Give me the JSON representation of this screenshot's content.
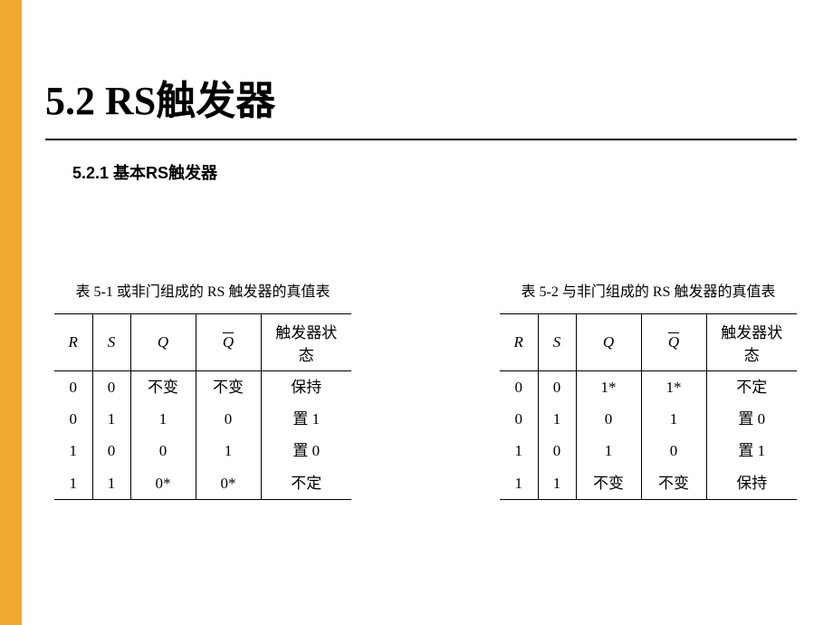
{
  "sidebar_color": "#f0a830",
  "title": "5.2  RS触发器",
  "subtitle": "5.2.1 基本RS触发器",
  "table1": {
    "caption": "表 5-1  或非门组成的 RS 触发器的真值表",
    "columns": [
      "R",
      "S",
      "Q",
      "Q̄",
      "触发器状态"
    ],
    "rows": [
      [
        "0",
        "0",
        "不变",
        "不变",
        "保持"
      ],
      [
        "0",
        "1",
        "1",
        "0",
        "置 1"
      ],
      [
        "1",
        "0",
        "0",
        "1",
        "置 0"
      ],
      [
        "1",
        "1",
        "0*",
        "0*",
        "不定"
      ]
    ]
  },
  "table2": {
    "caption": "表 5-2  与非门组成的 RS 触发器的真值表",
    "columns": [
      "R",
      "S",
      "Q",
      "Q̄",
      "触发器状态"
    ],
    "rows": [
      [
        "0",
        "0",
        "1*",
        "1*",
        "不定"
      ],
      [
        "0",
        "1",
        "0",
        "1",
        "置 0"
      ],
      [
        "1",
        "0",
        "1",
        "0",
        "置 1"
      ],
      [
        "1",
        "1",
        "不变",
        "不变",
        "保持"
      ]
    ]
  }
}
